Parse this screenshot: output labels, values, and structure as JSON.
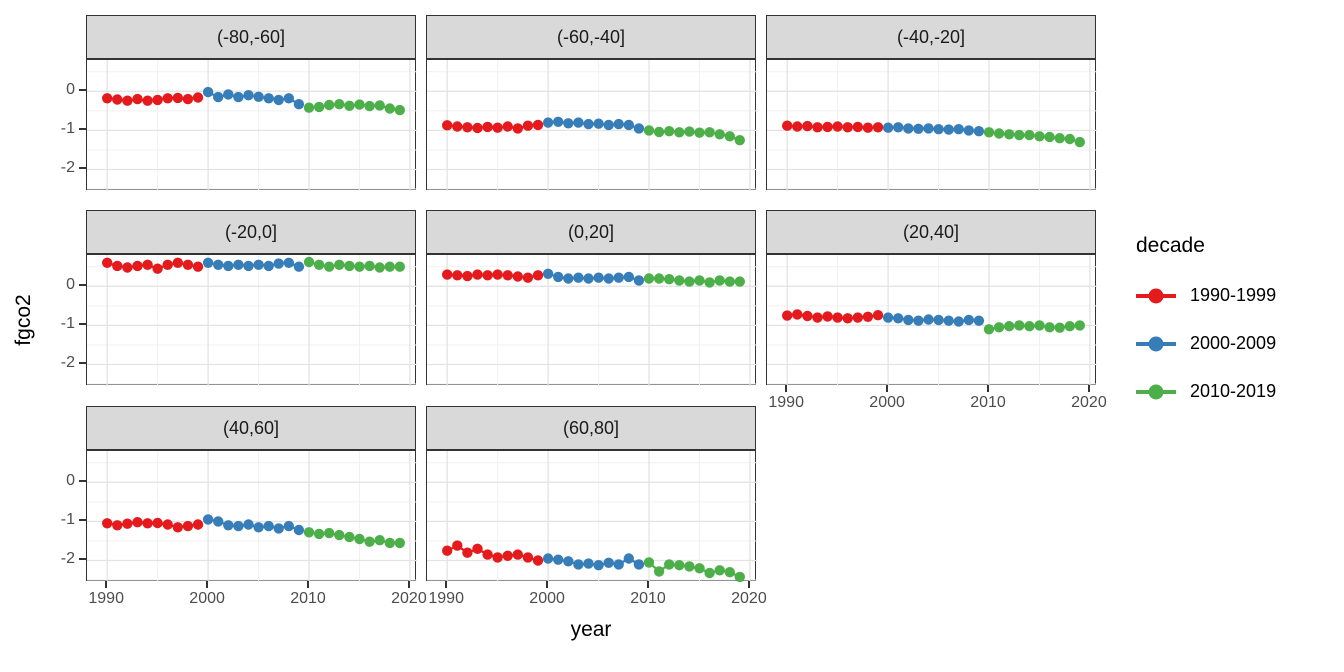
{
  "chart_data": {
    "type": "scatter",
    "title": "",
    "xlabel": "year",
    "ylabel": "fgco2",
    "x_ticks": [
      1990,
      2000,
      2010,
      2020
    ],
    "x_minor_ticks": [
      1995,
      2005,
      2015
    ],
    "y_ticks": [
      0,
      -1,
      -2
    ],
    "y_minor_ticks": [
      0.5,
      -0.5,
      -1.5,
      -2.5
    ],
    "xlim": [
      1988,
      2020.7
    ],
    "ylim": [
      -2.55,
      0.8
    ],
    "grid": true,
    "years_start": 1990,
    "legend_position": "right",
    "legend": {
      "title": "decade",
      "entries": [
        {
          "label": "1990-1999",
          "color": "#E41A1C"
        },
        {
          "label": "2000-2009",
          "color": "#377EB8"
        },
        {
          "label": "2010-2019",
          "color": "#4DAF4A"
        }
      ]
    },
    "decade_index_spans": [
      [
        0,
        9
      ],
      [
        10,
        19
      ],
      [
        20,
        29
      ]
    ],
    "facets": [
      {
        "label": "(-80,-60]",
        "values": [
          -0.18,
          -0.21,
          -0.24,
          -0.2,
          -0.24,
          -0.22,
          -0.18,
          -0.17,
          -0.2,
          -0.16,
          -0.02,
          -0.15,
          -0.08,
          -0.15,
          -0.1,
          -0.14,
          -0.18,
          -0.22,
          -0.18,
          -0.33,
          -0.42,
          -0.4,
          -0.35,
          -0.33,
          -0.37,
          -0.34,
          -0.38,
          -0.36,
          -0.44,
          -0.48
        ]
      },
      {
        "label": "(-60,-40]",
        "values": [
          -0.87,
          -0.9,
          -0.92,
          -0.94,
          -0.91,
          -0.93,
          -0.9,
          -0.95,
          -0.88,
          -0.86,
          -0.8,
          -0.78,
          -0.82,
          -0.8,
          -0.84,
          -0.83,
          -0.86,
          -0.84,
          -0.86,
          -0.95,
          -1.0,
          -1.04,
          -1.02,
          -1.05,
          -1.03,
          -1.06,
          -1.05,
          -1.1,
          -1.15,
          -1.25
        ]
      },
      {
        "label": "(-40,-20]",
        "values": [
          -0.88,
          -0.9,
          -0.89,
          -0.92,
          -0.91,
          -0.9,
          -0.92,
          -0.91,
          -0.93,
          -0.92,
          -0.93,
          -0.92,
          -0.95,
          -0.96,
          -0.95,
          -0.97,
          -0.98,
          -0.97,
          -1.0,
          -1.02,
          -1.05,
          -1.08,
          -1.1,
          -1.12,
          -1.12,
          -1.15,
          -1.17,
          -1.2,
          -1.22,
          -1.3
        ]
      },
      {
        "label": "(-20,0]",
        "values": [
          0.6,
          0.52,
          0.48,
          0.52,
          0.55,
          0.45,
          0.55,
          0.6,
          0.55,
          0.5,
          0.6,
          0.55,
          0.52,
          0.55,
          0.52,
          0.55,
          0.52,
          0.58,
          0.6,
          0.5,
          0.62,
          0.55,
          0.5,
          0.55,
          0.52,
          0.5,
          0.52,
          0.48,
          0.5,
          0.5
        ]
      },
      {
        "label": "(0,20]",
        "values": [
          0.3,
          0.28,
          0.26,
          0.3,
          0.28,
          0.3,
          0.28,
          0.25,
          0.22,
          0.28,
          0.32,
          0.24,
          0.2,
          0.22,
          0.2,
          0.22,
          0.2,
          0.22,
          0.24,
          0.15,
          0.2,
          0.2,
          0.18,
          0.15,
          0.12,
          0.15,
          0.1,
          0.15,
          0.12,
          0.12
        ]
      },
      {
        "label": "(20,40]",
        "values": [
          -0.75,
          -0.72,
          -0.76,
          -0.8,
          -0.77,
          -0.8,
          -0.82,
          -0.8,
          -0.78,
          -0.74,
          -0.8,
          -0.82,
          -0.86,
          -0.88,
          -0.85,
          -0.86,
          -0.88,
          -0.9,
          -0.86,
          -0.88,
          -1.1,
          -1.05,
          -1.02,
          -1.0,
          -1.02,
          -1.0,
          -1.05,
          -1.06,
          -1.02,
          -1.0
        ]
      },
      {
        "label": "(40,60]",
        "values": [
          -1.05,
          -1.1,
          -1.06,
          -1.02,
          -1.05,
          -1.04,
          -1.08,
          -1.15,
          -1.12,
          -1.08,
          -0.95,
          -1.0,
          -1.1,
          -1.12,
          -1.08,
          -1.15,
          -1.12,
          -1.18,
          -1.12,
          -1.22,
          -1.28,
          -1.32,
          -1.3,
          -1.35,
          -1.4,
          -1.45,
          -1.52,
          -1.48,
          -1.55,
          -1.55
        ]
      },
      {
        "label": "(60,80]",
        "values": [
          -1.75,
          -1.62,
          -1.8,
          -1.7,
          -1.85,
          -1.92,
          -1.88,
          -1.85,
          -1.92,
          -2.0,
          -1.95,
          -1.98,
          -2.02,
          -2.1,
          -2.08,
          -2.12,
          -2.06,
          -2.1,
          -1.95,
          -2.1,
          -2.05,
          -2.28,
          -2.1,
          -2.12,
          -2.15,
          -2.2,
          -2.32,
          -2.25,
          -2.3,
          -2.42
        ]
      }
    ],
    "colors": {
      "strip_fill": "#d9d9d9",
      "panel_border": "#333333",
      "grid_major": "#e3e3e3",
      "grid_minor": "#f1f1f1",
      "tick_label": "#4d4d4d"
    }
  }
}
